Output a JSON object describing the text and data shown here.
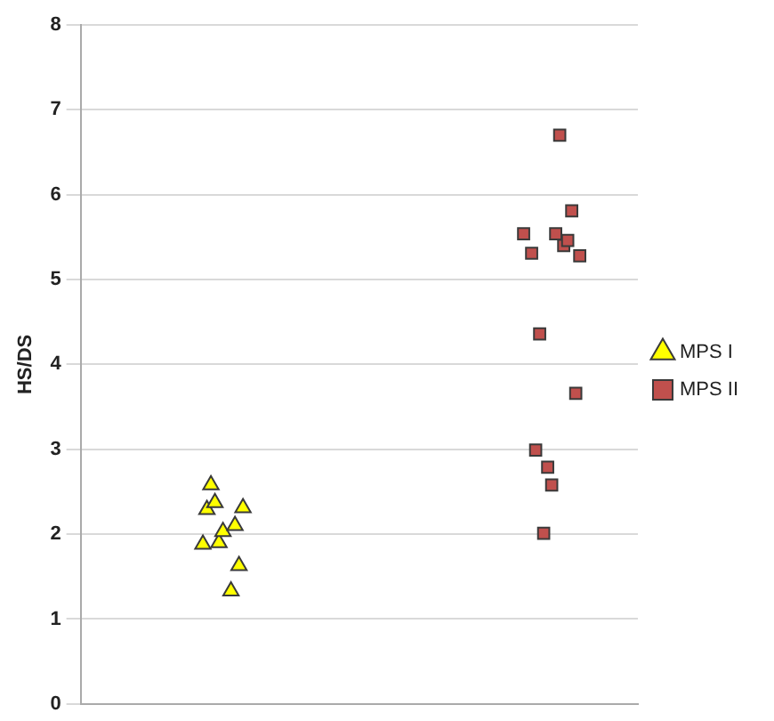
{
  "chart_data": {
    "type": "scatter",
    "ylabel": "HS/DS",
    "ylim": [
      0,
      8
    ],
    "yticks": [
      0,
      1,
      2,
      3,
      4,
      5,
      6,
      7,
      8
    ],
    "tick_labels": "y",
    "grid": "y",
    "legend": "right",
    "categories": [
      null,
      null,
      null,
      null,
      null,
      null,
      null,
      null,
      null,
      null,
      null,
      null,
      null,
      null,
      null,
      null,
      null,
      null,
      null,
      null,
      null,
      null,
      null,
      null,
      null,
      null,
      null,
      null,
      null,
      null,
      null,
      null,
      null,
      null,
      null,
      null,
      null,
      null,
      null,
      null,
      null,
      null,
      null,
      null,
      null,
      null,
      null,
      null,
      null,
      null,
      null,
      null,
      null,
      null,
      null,
      null,
      null,
      null,
      null,
      null,
      null,
      null,
      null,
      null,
      null,
      null,
      null,
      null,
      null,
      null,
      null,
      null,
      null,
      null,
      null,
      null,
      null,
      null,
      null,
      null,
      null,
      null,
      null,
      null,
      null,
      null,
      null,
      null,
      null,
      null,
      null,
      null,
      null,
      null,
      null,
      null,
      null,
      null,
      null,
      null,
      null,
      null,
      null,
      null,
      null,
      null,
      null,
      null,
      null,
      null,
      null,
      null,
      null,
      null,
      null,
      null,
      null,
      null,
      null,
      null,
      null,
      null,
      null,
      null,
      null,
      null,
      null,
      null,
      null,
      null,
      null,
      null,
      null,
      null,
      null,
      null,
      null,
      null,
      null
    ],
    "series": [
      {
        "name": "MPS I",
        "color": "#ffff00",
        "marker": "triangle",
        "values": [
          null,
          null,
          null,
          null,
          null,
          null,
          null,
          null,
          null,
          null,
          null,
          null,
          null,
          null,
          null,
          null,
          null,
          null,
          null,
          null,
          null,
          null,
          null,
          null,
          null,
          null,
          null,
          null,
          null,
          null,
          1.88,
          2.29,
          2.58,
          2.37,
          1.9,
          2.03,
          null,
          1.33,
          2.1,
          1.63,
          2.31,
          null,
          null,
          null,
          null,
          null,
          null,
          null,
          null,
          null,
          null,
          null,
          null,
          null,
          null,
          null,
          null,
          null,
          null,
          null,
          null,
          null,
          null,
          null,
          null,
          null,
          null,
          null,
          null,
          null,
          null,
          null,
          null,
          null,
          null,
          null,
          null,
          null,
          null,
          null,
          null,
          null,
          null,
          null,
          null,
          null,
          null,
          null,
          null,
          null,
          null,
          null,
          null,
          null,
          null,
          null,
          null,
          null,
          null,
          null,
          null,
          null,
          null,
          null,
          null,
          null,
          null,
          null,
          null,
          null,
          null,
          null,
          null,
          null,
          null,
          null,
          null,
          null,
          null,
          null,
          null,
          null,
          null,
          null,
          null,
          null,
          null,
          null,
          null,
          null,
          null,
          null,
          null,
          null,
          null,
          null,
          null,
          null,
          null
        ]
      },
      {
        "name": "MPS II",
        "color": "#c0504d",
        "marker": "square",
        "values": [
          null,
          null,
          null,
          null,
          null,
          null,
          null,
          null,
          null,
          null,
          null,
          null,
          null,
          null,
          null,
          null,
          null,
          null,
          null,
          null,
          null,
          null,
          null,
          null,
          null,
          null,
          null,
          null,
          null,
          null,
          null,
          null,
          null,
          null,
          null,
          null,
          null,
          null,
          null,
          null,
          null,
          null,
          null,
          null,
          null,
          null,
          null,
          null,
          null,
          null,
          null,
          null,
          null,
          null,
          null,
          null,
          null,
          null,
          null,
          null,
          null,
          null,
          null,
          null,
          null,
          null,
          null,
          null,
          null,
          null,
          null,
          null,
          null,
          null,
          null,
          null,
          null,
          null,
          null,
          null,
          null,
          null,
          null,
          null,
          null,
          null,
          null,
          null,
          null,
          null,
          null,
          null,
          null,
          null,
          null,
          null,
          null,
          null,
          null,
          null,
          null,
          null,
          null,
          null,
          null,
          null,
          null,
          null,
          null,
          null,
          5.54,
          null,
          5.31,
          2.99,
          4.36,
          2.01,
          2.79,
          2.58,
          5.54,
          6.7,
          5.4,
          5.46,
          5.81,
          3.66,
          5.28,
          null,
          null,
          null,
          null,
          null,
          null,
          null,
          null,
          null,
          null,
          null,
          null,
          null,
          null
        ]
      }
    ]
  }
}
